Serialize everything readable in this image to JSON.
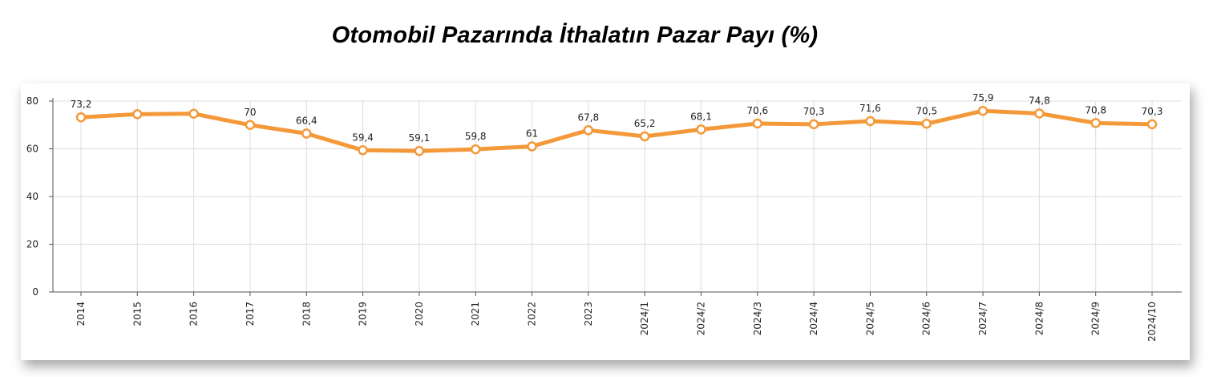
{
  "chart_data": {
    "type": "line",
    "title": "Otomobil Pazarında İthalatın Pazar Payı (%)",
    "xlabel": "",
    "ylabel": "",
    "ylim": [
      0,
      80
    ],
    "yticks": [
      "0",
      "20",
      "40",
      "60",
      "80"
    ],
    "grid": true,
    "colors": {
      "line": "#f4993a",
      "grid": "#dcdcdc",
      "axis": "#555555"
    },
    "categories": [
      "2014",
      "2015",
      "2016",
      "2017",
      "2018",
      "2019",
      "2020",
      "2021",
      "2022",
      "2023",
      "2024/1",
      "2024/2",
      "2024/3",
      "2024/4",
      "2024/5",
      "2024/6",
      "2024/7",
      "2024/8",
      "2024/9",
      "2024/10"
    ],
    "series": [
      {
        "values": [
          73.2,
          74.5,
          74.7,
          70,
          66.4,
          59.4,
          59.1,
          59.8,
          61,
          67.8,
          65.2,
          68.1,
          70.6,
          70.3,
          71.6,
          70.5,
          75.9,
          74.8,
          70.8,
          70.3
        ],
        "labels": [
          "73,2",
          "",
          "",
          "70",
          "66,4",
          "59,4",
          "59,1",
          "59,8",
          "61",
          "67,8",
          "65,2",
          "68,1",
          "70,6",
          "70,3",
          "71,6",
          "70,5",
          "75,9",
          "74,8",
          "70,8",
          "70,3"
        ]
      }
    ]
  }
}
